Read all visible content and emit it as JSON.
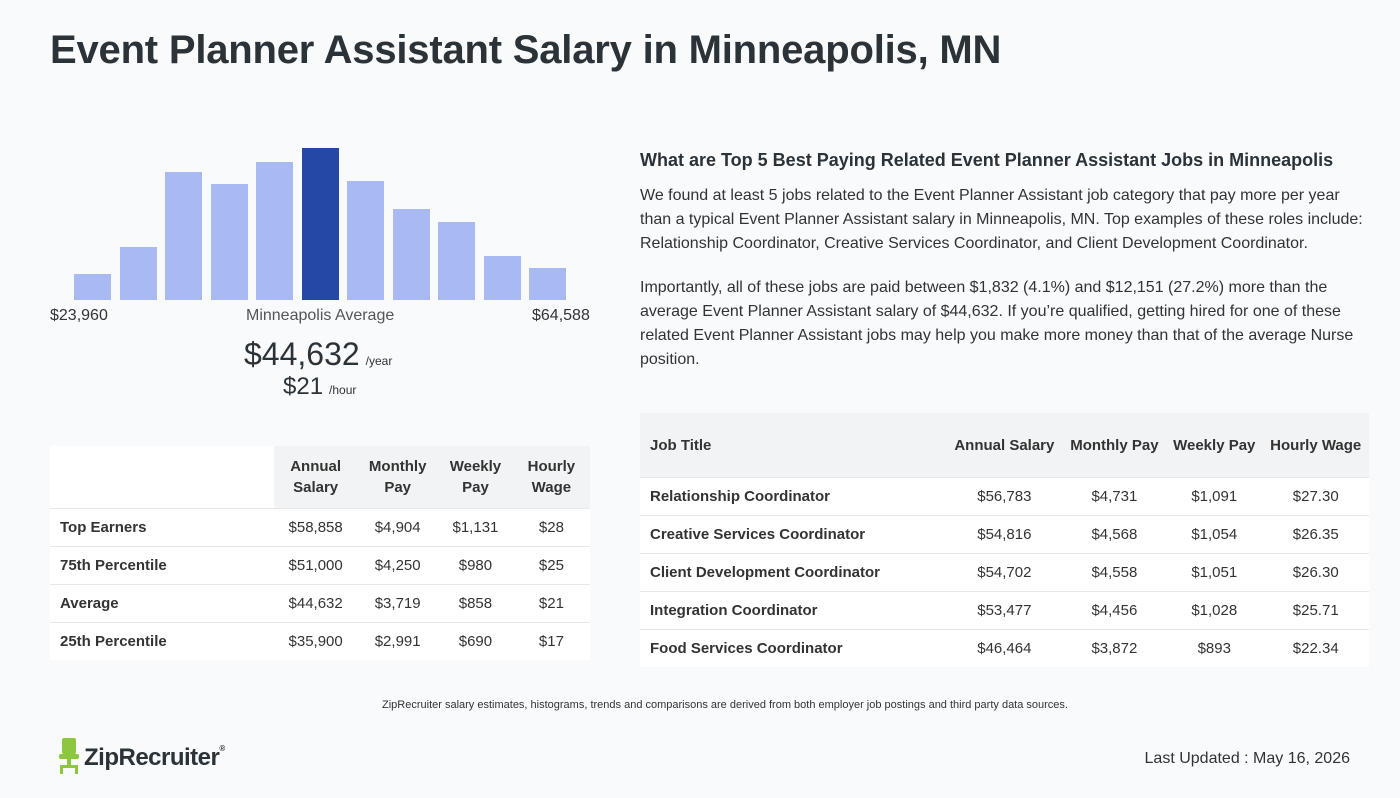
{
  "page": {
    "title": "Event Planner Assistant Salary in Minneapolis, MN"
  },
  "colors": {
    "bar": "#a9b9f2",
    "bar_highlight": "#2547a6",
    "logo_green": "#8dc63f"
  },
  "histogram": {
    "min_label": "$23,960",
    "max_label": "$64,588",
    "avg_label": "Minneapolis Average",
    "avg_year": "$44,632",
    "year_unit": "/year",
    "avg_hour": "$21",
    "hour_unit": "/hour"
  },
  "chart_data": {
    "type": "bar",
    "values": [
      0.17,
      0.35,
      0.84,
      0.76,
      0.91,
      1.0,
      0.78,
      0.6,
      0.51,
      0.29,
      0.21
    ],
    "highlight_index": 5
  },
  "percentile_table": {
    "headers": [
      "Annual Salary",
      "Monthly Pay",
      "Weekly Pay",
      "Hourly Wage"
    ],
    "rows": [
      {
        "label": "Top Earners",
        "cells": [
          "$58,858",
          "$4,904",
          "$1,131",
          "$28"
        ]
      },
      {
        "label": "75th Percentile",
        "cells": [
          "$51,000",
          "$4,250",
          "$980",
          "$25"
        ]
      },
      {
        "label": "Average",
        "cells": [
          "$44,632",
          "$3,719",
          "$858",
          "$21"
        ]
      },
      {
        "label": "25th Percentile",
        "cells": [
          "$35,900",
          "$2,991",
          "$690",
          "$17"
        ]
      }
    ]
  },
  "related": {
    "heading": "What are Top 5 Best Paying Related Event Planner Assistant Jobs in Minneapolis",
    "para1": "We found at least 5 jobs related to the Event Planner Assistant job category that pay more per year than a typical Event Planner Assistant salary in Minneapolis, MN. Top examples of these roles include: Relationship Coordinator, Creative Services Coordinator, and Client Development Coordinator.",
    "para2": "Importantly, all of these jobs are paid between $1,832 (4.1%) and $12,151 (27.2%) more than the average Event Planner Assistant salary of $44,632. If you’re qualified, getting hired for one of these related Event Planner Assistant jobs may help you make more money than that of the average Nurse position."
  },
  "jobs_table": {
    "headers": [
      "Job Title",
      "Annual Salary",
      "Monthly Pay",
      "Weekly Pay",
      "Hourly Wage"
    ],
    "rows": [
      {
        "title": "Relationship Coordinator",
        "cells": [
          "$56,783",
          "$4,731",
          "$1,091",
          "$27.30"
        ]
      },
      {
        "title": "Creative Services Coordinator",
        "cells": [
          "$54,816",
          "$4,568",
          "$1,054",
          "$26.35"
        ]
      },
      {
        "title": "Client Development Coordinator",
        "cells": [
          "$54,702",
          "$4,558",
          "$1,051",
          "$26.30"
        ]
      },
      {
        "title": "Integration Coordinator",
        "cells": [
          "$53,477",
          "$4,456",
          "$1,028",
          "$25.71"
        ]
      },
      {
        "title": "Food Services Coordinator",
        "cells": [
          "$46,464",
          "$3,872",
          "$893",
          "$22.34"
        ]
      }
    ]
  },
  "footer": {
    "disclaimer": "ZipRecruiter salary estimates, histograms, trends and comparisons are derived from both employer job postings and third party data sources.",
    "logo_text": "ZipRecruiter",
    "logo_reg": "®",
    "last_updated": "Last Updated : May 16, 2026"
  }
}
